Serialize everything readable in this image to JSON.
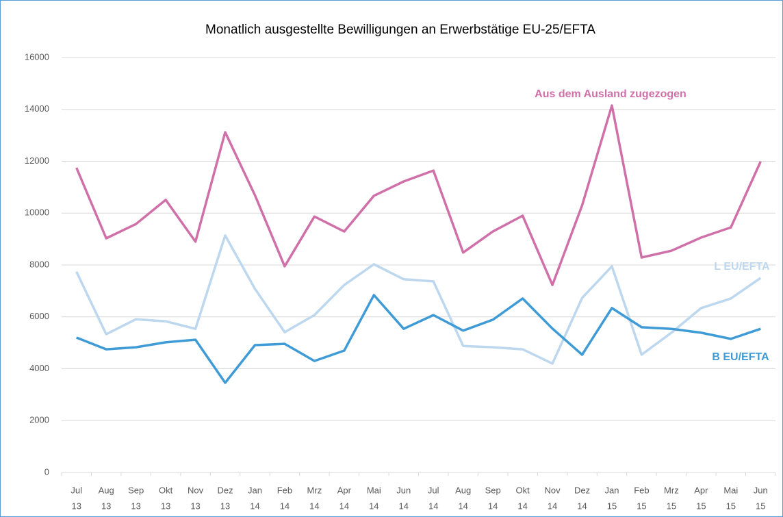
{
  "chart_data": {
    "type": "line",
    "title": "Monatlich ausgestellte Bewilligungen an Erwerbstätige EU-25/EFTA",
    "categories": [
      [
        "Jul",
        "13"
      ],
      [
        "Aug",
        "13"
      ],
      [
        "Sep",
        "13"
      ],
      [
        "Okt",
        "13"
      ],
      [
        "Nov",
        "13"
      ],
      [
        "Dez",
        "13"
      ],
      [
        "Jan",
        "14"
      ],
      [
        "Feb",
        "14"
      ],
      [
        "Mrz",
        "14"
      ],
      [
        "Apr",
        "14"
      ],
      [
        "Mai",
        "14"
      ],
      [
        "Jun",
        "14"
      ],
      [
        "Jul",
        "14"
      ],
      [
        "Aug",
        "14"
      ],
      [
        "Sep",
        "14"
      ],
      [
        "Okt",
        "14"
      ],
      [
        "Nov",
        "14"
      ],
      [
        "Dez",
        "14"
      ],
      [
        "Jan",
        "15"
      ],
      [
        "Feb",
        "15"
      ],
      [
        "Mrz",
        "15"
      ],
      [
        "Apr",
        "15"
      ],
      [
        "Mai",
        "15"
      ],
      [
        "Jun",
        "15"
      ]
    ],
    "series": [
      {
        "name": "Aus dem Ausland zugezogen",
        "color": "#d070a8",
        "values": [
          11750,
          9030,
          9580,
          10510,
          8900,
          13120,
          10690,
          7950,
          9870,
          9290,
          10670,
          11220,
          11640,
          8480,
          9290,
          9900,
          7230,
          10300,
          14150,
          8290,
          8550,
          9060,
          9450,
          11990
        ]
      },
      {
        "name": "L EU/EFTA",
        "color": "#bdd7ee",
        "values": [
          7740,
          5330,
          5910,
          5830,
          5540,
          9140,
          7080,
          5410,
          6070,
          7230,
          8030,
          7450,
          7370,
          4880,
          4830,
          4750,
          4200,
          6730,
          7950,
          4540,
          5390,
          6340,
          6710,
          7500
        ]
      },
      {
        "name": "B EU/EFTA",
        "color": "#3f9bd6",
        "values": [
          5200,
          4750,
          4830,
          5020,
          5120,
          3460,
          4910,
          4960,
          4300,
          4700,
          6840,
          5540,
          6070,
          5470,
          5890,
          6710,
          5550,
          4540,
          6340,
          5600,
          5540,
          5390,
          5150,
          5540
        ]
      }
    ],
    "ylim": [
      0,
      16000
    ],
    "yticks": [
      0,
      2000,
      4000,
      6000,
      8000,
      10000,
      12000,
      14000,
      16000
    ],
    "grid": true
  }
}
